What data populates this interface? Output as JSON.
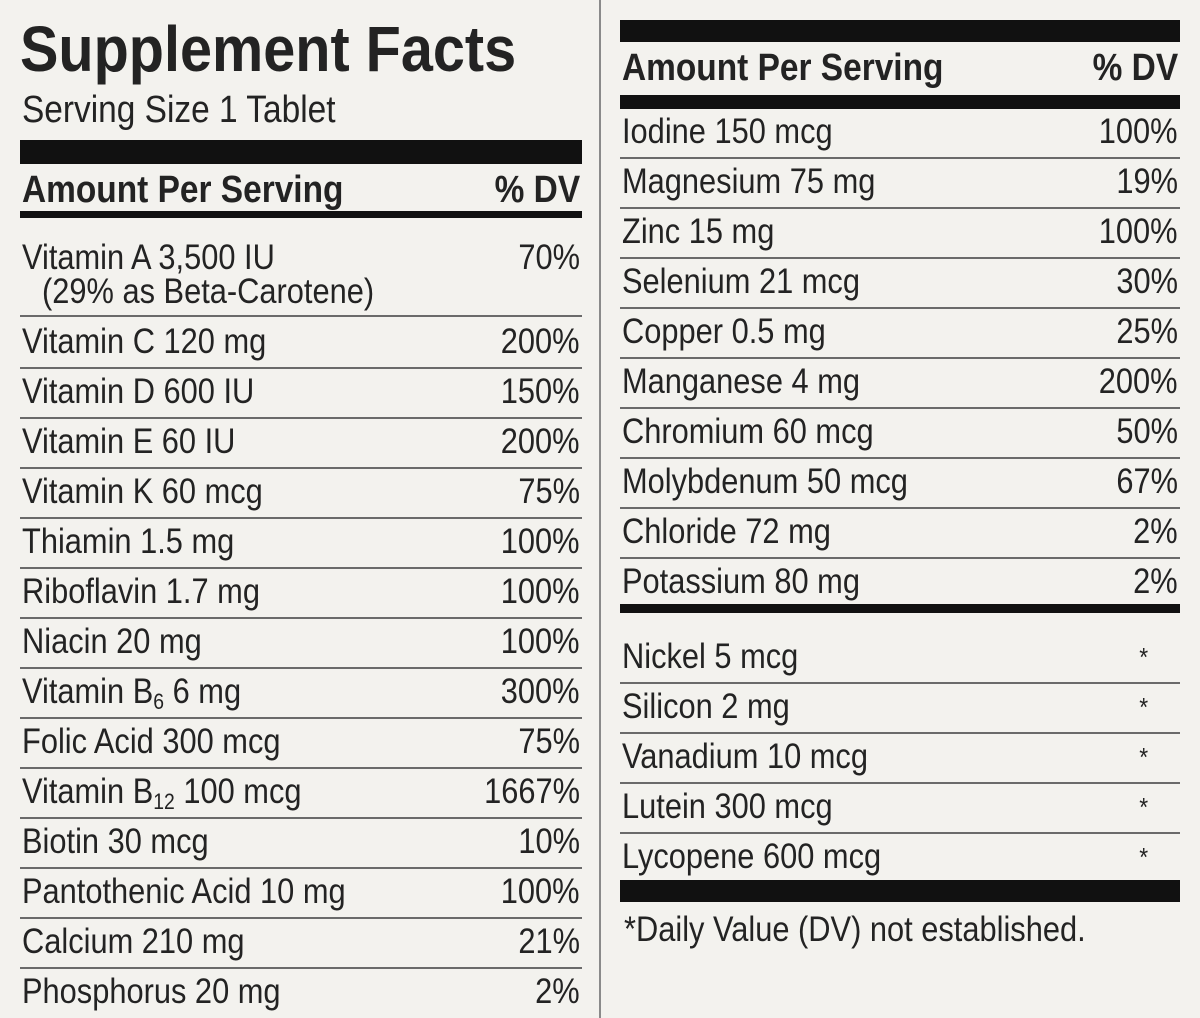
{
  "header": {
    "title": "Supplement Facts",
    "serving": "Serving Size 1 Tablet"
  },
  "left": {
    "column_headers": [
      "Amount Per Serving",
      "% DV"
    ],
    "rows": [
      {
        "name": "Vitamin A 3,500 IU",
        "note": "(29% as Beta-Carotene)",
        "dv": "70%"
      },
      {
        "name": "Vitamin C 120 mg",
        "dv": "200%"
      },
      {
        "name": "Vitamin D 600 IU",
        "dv": "150%"
      },
      {
        "name": "Vitamin E 60 IU",
        "dv": "200%"
      },
      {
        "name": "Vitamin K 60 mcg",
        "dv": "75%"
      },
      {
        "name": "Thiamin 1.5 mg",
        "dv": "100%"
      },
      {
        "name": "Riboflavin 1.7 mg",
        "dv": "100%"
      },
      {
        "name": "Niacin 20 mg",
        "dv": "100%"
      },
      {
        "name": "Vitamin B",
        "sub": "6",
        "name_rest": " 6 mg",
        "dv": "300%"
      },
      {
        "name": "Folic Acid 300 mcg",
        "dv": "75%"
      },
      {
        "name": "Vitamin B",
        "sub": "12",
        "name_rest": " 100 mcg",
        "dv": "1667%"
      },
      {
        "name": "Biotin 30 mcg",
        "dv": "10%"
      },
      {
        "name": "Pantothenic Acid 10 mg",
        "dv": "100%"
      },
      {
        "name": "Calcium 210 mg",
        "dv": "21%"
      },
      {
        "name": "Phosphorus 20 mg",
        "dv": "2%"
      }
    ]
  },
  "right": {
    "column_headers": [
      "Amount Per Serving",
      "% DV"
    ],
    "rows": [
      {
        "name": "Iodine 150 mcg",
        "dv": "100%"
      },
      {
        "name": "Magnesium 75 mg",
        "dv": "19%"
      },
      {
        "name": "Zinc 15 mg",
        "dv": "100%"
      },
      {
        "name": "Selenium 21 mcg",
        "dv": "30%"
      },
      {
        "name": "Copper 0.5 mg",
        "dv": "25%"
      },
      {
        "name": "Manganese 4 mg",
        "dv": "200%"
      },
      {
        "name": "Chromium 60 mcg",
        "dv": "50%"
      },
      {
        "name": "Molybdenum 50 mcg",
        "dv": "67%"
      },
      {
        "name": "Chloride 72 mg",
        "dv": "2%"
      },
      {
        "name": "Potassium 80 mg",
        "dv": "2%"
      }
    ],
    "other_rows": [
      {
        "name": "Nickel 5 mcg",
        "dv": "*"
      },
      {
        "name": "Silicon 2 mg",
        "dv": "*"
      },
      {
        "name": "Vanadium 10 mcg",
        "dv": "*"
      },
      {
        "name": "Lutein 300 mcg",
        "dv": "*"
      },
      {
        "name": "Lycopene 600 mcg",
        "dv": "*"
      }
    ],
    "footnote": "*Daily Value (DV) not established."
  }
}
